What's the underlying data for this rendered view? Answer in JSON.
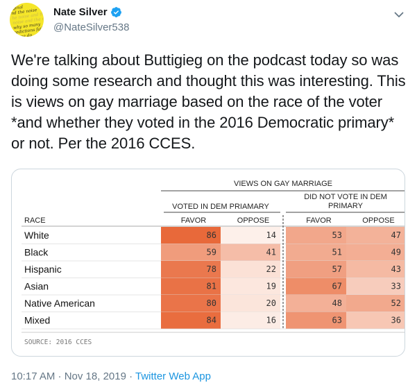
{
  "author": {
    "name": "Nate Silver",
    "handle": "@NateSilver538",
    "avatar_text": [
      "rginal",
      "nd the noise",
      "he noise and the si",
      "noise and the no",
      "why so many",
      "redictions fail",
      "some do"
    ]
  },
  "tweet": {
    "text": "We're talking about Buttigieg on the podcast today so was doing some research and thought this was interesting. This is views on gay marriage based on the race of the voter *and whether they voted in the 2016 Democratic primary* or not. Per the 2016 CCES.",
    "timestamp": "10:17 AM · Nov 18, 2019",
    "separator": " · ",
    "app": "Twitter Web App"
  },
  "chart_data": {
    "type": "table",
    "title": "VIEWS ON GAY MARRIAGE",
    "groups": [
      "VOTED IN DEM PRIAMARY",
      "DID NOT VOTE IN DEM PRIMARY"
    ],
    "row_header": "RACE",
    "columns": [
      "FAVOR",
      "OPPOSE",
      "FAVOR",
      "OPPOSE"
    ],
    "rows": [
      {
        "race": "White",
        "values": [
          86,
          14,
          53,
          47
        ]
      },
      {
        "race": "Black",
        "values": [
          59,
          41,
          51,
          49
        ]
      },
      {
        "race": "Hispanic",
        "values": [
          78,
          22,
          57,
          43
        ]
      },
      {
        "race": "Asian",
        "values": [
          81,
          19,
          67,
          33
        ]
      },
      {
        "race": "Native American",
        "values": [
          80,
          20,
          48,
          52
        ]
      },
      {
        "race": "Mixed",
        "values": [
          84,
          16,
          63,
          36
        ]
      }
    ],
    "source": "SOURCE: 2016 CCES",
    "color_high": "#e8693a",
    "color_low": "#fdf0ea"
  },
  "colors": {
    "verified": "#1da1f2",
    "link": "#1b95e0",
    "muted": "#657786"
  },
  "icons": {
    "verified": "verified-badge-icon",
    "menu": "chevron-down-icon"
  }
}
